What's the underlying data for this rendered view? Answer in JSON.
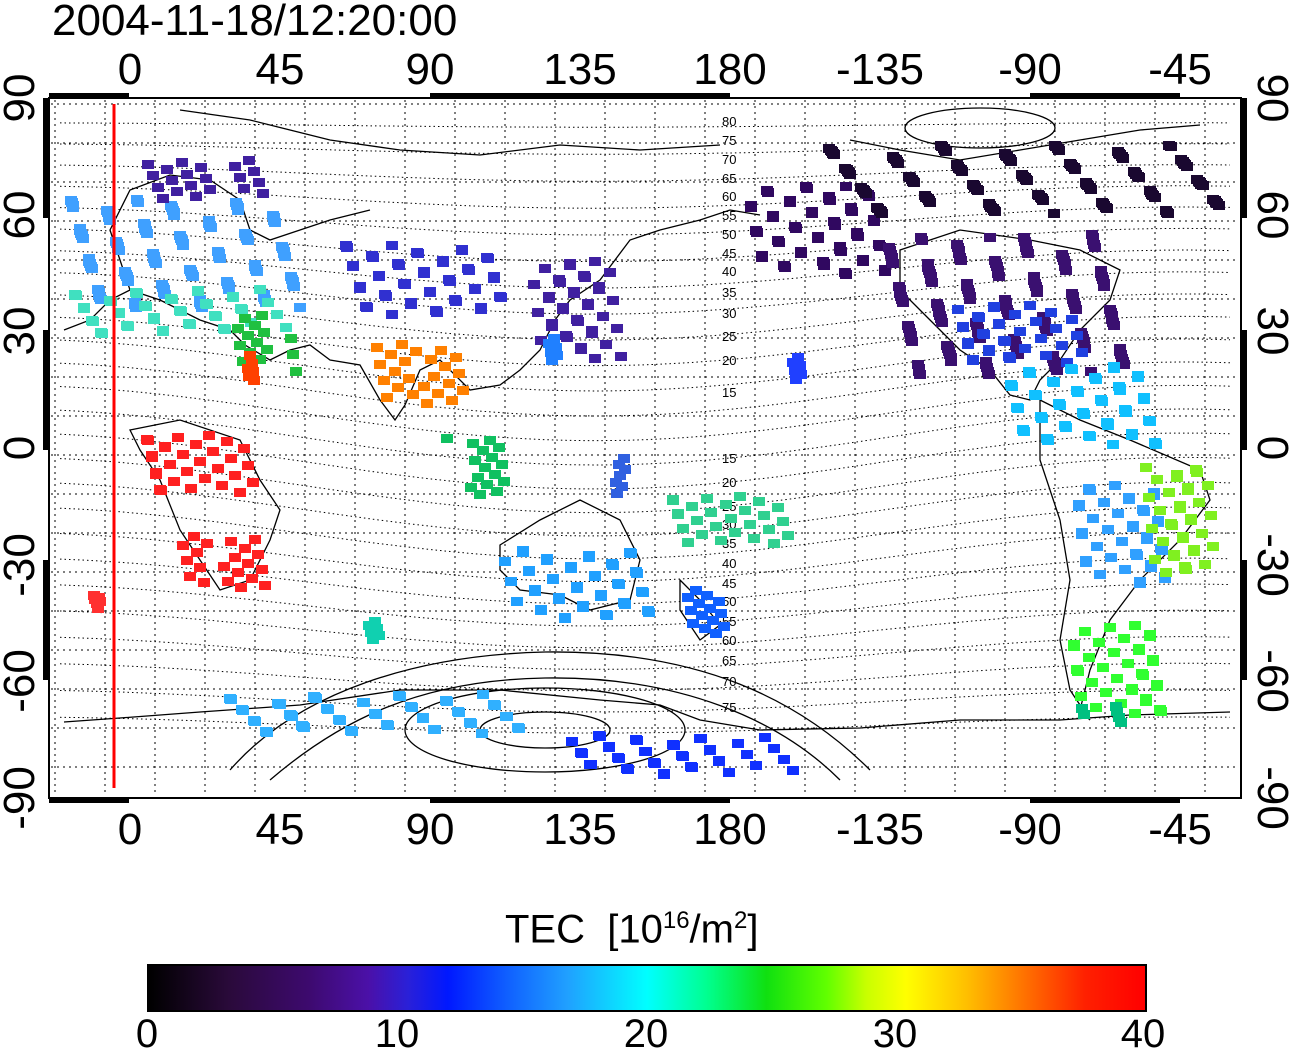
{
  "title": "2004-11-18/12:20:00",
  "map": {
    "lon_ticks_top": [
      "0",
      "45",
      "90",
      "135",
      "180",
      "-135",
      "-90",
      "-45"
    ],
    "lon_ticks_bottom": [
      "0",
      "45",
      "90",
      "135",
      "180",
      "-135",
      "-90",
      "-45"
    ],
    "lat_ticks_left": [
      "90",
      "60",
      "30",
      "0",
      "-30",
      "-60",
      "-90"
    ],
    "lat_ticks_right": [
      "90",
      "60",
      "30",
      "0",
      "-30",
      "-60",
      "-90"
    ],
    "contour_labels": [
      "80",
      "75",
      "70",
      "65",
      "60",
      "55",
      "50",
      "45",
      "40",
      "35",
      "30",
      "25",
      "20",
      "15",
      "15",
      "20",
      "25",
      "30",
      "35",
      "40",
      "45",
      "50",
      "55",
      "60",
      "65",
      "70",
      "75"
    ],
    "terminator_color": "#ff0000"
  },
  "colorbar": {
    "label": "TEC",
    "unit_base": "[10",
    "unit_exp": "16",
    "unit_mid": "/m",
    "unit_exp2": "2",
    "unit_end": "]",
    "ticks": [
      "0",
      "10",
      "20",
      "30",
      "40"
    ],
    "range": [
      0,
      40
    ]
  }
}
